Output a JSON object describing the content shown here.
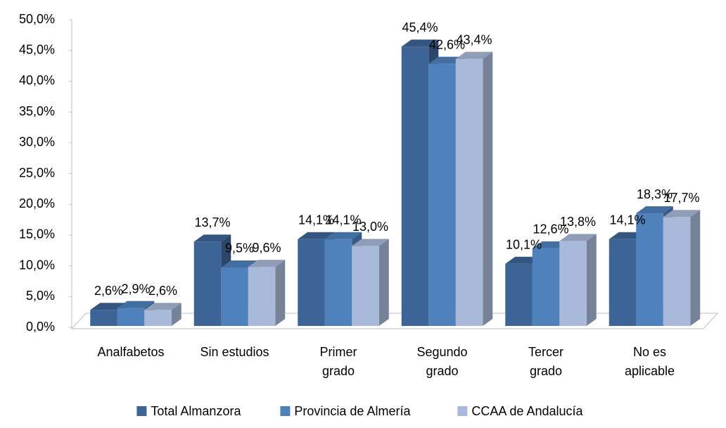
{
  "chart_data": {
    "type": "bar3d",
    "categories": [
      "Analfabetos",
      "Sin estudios",
      "Primer\ngrado",
      "Segundo\ngrado",
      "Tercer\ngrado",
      "No es\naplicable"
    ],
    "series": [
      {
        "name": "Total Almanzora",
        "color": "#3d6496",
        "values": [
          2.6,
          13.7,
          14.1,
          45.4,
          10.1,
          14.1
        ],
        "value_labels": [
          "2,6%",
          "13,7%",
          "14,1%",
          "45,4%",
          "10,1%",
          "14,1%"
        ]
      },
      {
        "name": "Provincia de Almería",
        "color": "#4f81bd",
        "values": [
          2.9,
          9.5,
          14.1,
          42.6,
          12.6,
          18.3
        ],
        "value_labels": [
          "2,9%",
          "9,5%",
          "14,1%",
          "42,6%",
          "12,6%",
          "18,3%"
        ]
      },
      {
        "name": "CCAA de Andalucía",
        "color": "#a9b9d9",
        "values": [
          2.6,
          9.6,
          13.0,
          43.4,
          13.8,
          17.7
        ],
        "value_labels": [
          "2,6%",
          "9,6%",
          "13,0%",
          "43,4%",
          "13,8%",
          "17,7%"
        ]
      }
    ],
    "ylim": [
      0,
      50
    ],
    "yticks": [
      {
        "value": 0,
        "label": "0,0%"
      },
      {
        "value": 5,
        "label": "5,0%"
      },
      {
        "value": 10,
        "label": "10,0%"
      },
      {
        "value": 15,
        "label": "15,0%"
      },
      {
        "value": 20,
        "label": "20,0%"
      },
      {
        "value": 25,
        "label": "25,0%"
      },
      {
        "value": 30,
        "label": "30,0%"
      },
      {
        "value": 35,
        "label": "35,0%"
      },
      {
        "value": 40,
        "label": "40,0%"
      },
      {
        "value": 45,
        "label": "45,0%"
      },
      {
        "value": 50,
        "label": "50,0%"
      }
    ],
    "legend": "bottom"
  }
}
